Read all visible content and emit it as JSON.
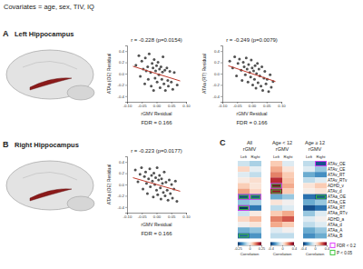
{
  "header": "Covariates = age, sex, TIV, IQ",
  "chart_data": [
    {
      "type": "scatter",
      "panel": "A",
      "region": "Left Hippocampus",
      "title": "r = -0.228 (p=0.0154)",
      "x_label": "rGMV Residual",
      "y_label": "ATAa (OE) Residual",
      "note": "FDR = 0.166",
      "color": "#333333",
      "marker": "circle",
      "x": [
        -0.07,
        -0.06,
        -0.055,
        -0.05,
        -0.045,
        -0.04,
        -0.038,
        -0.035,
        -0.03,
        -0.028,
        -0.025,
        -0.02,
        -0.018,
        -0.015,
        -0.012,
        -0.01,
        -0.008,
        -0.005,
        -0.003,
        0.0,
        0.002,
        0.005,
        0.008,
        0.01,
        0.012,
        0.015,
        0.018,
        0.02,
        0.022,
        0.025,
        0.028,
        0.03,
        0.035,
        0.038,
        0.04,
        0.045,
        0.05,
        0.055,
        0.06,
        0.07
      ],
      "values": [
        0.15,
        0.32,
        -0.05,
        0.22,
        0.08,
        -0.18,
        0.28,
        0.05,
        0.12,
        -0.1,
        0.35,
        0.02,
        -0.22,
        0.18,
        0.1,
        -0.3,
        0.25,
        -0.08,
        0.05,
        0.14,
        -0.15,
        0.2,
        -0.02,
        0.08,
        -0.25,
        0.12,
        -0.1,
        0.03,
        0.3,
        -0.18,
        0.06,
        -0.3,
        0.1,
        -0.12,
        -0.22,
        0.04,
        -0.15,
        -0.28,
        0.02,
        -0.2
      ],
      "fit": {
        "x": [
          -0.08,
          0.08
        ],
        "values": [
          0.13,
          -0.13
        ],
        "color": "#c0392b"
      },
      "xlim": [
        -0.1,
        0.1
      ],
      "ylim": [
        -0.5,
        0.5
      ],
      "xticks": [
        {
          "value": -0.1,
          "label": "-0.10"
        },
        {
          "value": -0.05,
          "label": "-0.05"
        },
        {
          "value": 0,
          "label": "0.00"
        },
        {
          "value": 0.05,
          "label": "0.05"
        },
        {
          "value": 0.1,
          "label": "0.10"
        }
      ],
      "yticks": [
        -0.4,
        -0.2,
        {
          "value": 0,
          "label": "0.0"
        },
        0.2,
        0.4
      ]
    },
    {
      "type": "scatter",
      "title": "r = -0.249 (p=0.0079)",
      "x_label": "rGMV Residual",
      "y_label": "ATAa (RT) Residual",
      "note": "FDR = 0.166",
      "color": "#333333",
      "marker": "circle",
      "x": [
        -0.075,
        -0.065,
        -0.058,
        -0.052,
        -0.047,
        -0.042,
        -0.036,
        -0.033,
        -0.029,
        -0.026,
        -0.022,
        -0.019,
        -0.016,
        -0.013,
        -0.011,
        -0.007,
        -0.004,
        -0.002,
        0.001,
        0.003,
        0.006,
        0.009,
        0.011,
        0.014,
        0.016,
        0.019,
        0.021,
        0.024,
        0.027,
        0.031,
        0.034,
        0.037,
        0.041,
        0.044,
        0.048,
        0.052,
        0.057,
        0.062,
        0.066,
        0.072
      ],
      "values": [
        0.22,
        0.1,
        0.3,
        -0.04,
        0.18,
        0.26,
        0.06,
        -0.12,
        0.2,
        0.12,
        -0.02,
        0.28,
        0.08,
        -0.15,
        0.16,
        0.02,
        -0.06,
        0.24,
        0.1,
        -0.2,
        0.05,
        -0.1,
        0.14,
        -0.26,
        0.0,
        0.18,
        -0.16,
        0.08,
        -0.04,
        -0.22,
        0.12,
        -0.3,
        -0.08,
        0.04,
        -0.18,
        -0.1,
        -0.32,
        -0.02,
        -0.24,
        -0.14
      ],
      "fit": {
        "x": [
          -0.08,
          0.08
        ],
        "values": [
          0.14,
          -0.14
        ],
        "color": "#c0392b"
      },
      "xlim": [
        -0.1,
        0.1
      ],
      "ylim": [
        -0.5,
        0.5
      ],
      "xticks": [
        {
          "value": -0.1,
          "label": "-0.10"
        },
        {
          "value": -0.05,
          "label": "-0.05"
        },
        {
          "value": 0,
          "label": "0.00"
        },
        {
          "value": 0.05,
          "label": "0.05"
        },
        {
          "value": 0.1,
          "label": "0.10"
        }
      ],
      "yticks": [
        -0.4,
        -0.2,
        {
          "value": 0,
          "label": "0.0"
        },
        0.2,
        0.4
      ]
    },
    {
      "type": "scatter",
      "panel": "B",
      "region": "Right Hippocampus",
      "title": "r = -0.223 (p=0.0177)",
      "x_label": "rGMV Residual",
      "y_label": "ATAa (OE) Residual",
      "note": "FDR = 0.166",
      "color": "#333333",
      "marker": "circle",
      "x": [
        -0.072,
        -0.063,
        -0.056,
        -0.051,
        -0.046,
        -0.041,
        -0.037,
        -0.034,
        -0.031,
        -0.027,
        -0.023,
        -0.021,
        -0.017,
        -0.014,
        -0.011,
        -0.009,
        -0.006,
        -0.003,
        0.0,
        0.002,
        0.004,
        0.007,
        0.01,
        0.013,
        0.015,
        0.017,
        0.02,
        0.023,
        0.026,
        0.029,
        0.032,
        0.036,
        0.039,
        0.043,
        0.047,
        0.051,
        0.054,
        0.059,
        0.064,
        0.069
      ],
      "values": [
        0.26,
        0.05,
        0.18,
        0.3,
        -0.08,
        0.14,
        0.22,
        0.02,
        -0.16,
        0.1,
        0.28,
        -0.04,
        0.16,
        0.06,
        -0.22,
        0.2,
        0.0,
        0.12,
        -0.1,
        0.3,
        -0.18,
        0.08,
        0.16,
        -0.06,
        -0.26,
        0.1,
        0.02,
        -0.14,
        0.22,
        -0.2,
        0.04,
        -0.1,
        -0.28,
        0.08,
        -0.16,
        0.0,
        -0.24,
        -0.08,
        0.06,
        -0.3
      ],
      "fit": {
        "x": [
          -0.08,
          0.08
        ],
        "values": [
          0.12,
          -0.12
        ],
        "color": "#c0392b"
      },
      "xlim": [
        -0.1,
        0.1
      ],
      "ylim": [
        -0.5,
        0.5
      ],
      "xticks": [
        {
          "value": -0.1,
          "label": "-0.10"
        },
        {
          "value": -0.05,
          "label": "-0.05"
        },
        {
          "value": 0,
          "label": "0.00"
        },
        {
          "value": 0.05,
          "label": "0.05"
        },
        {
          "value": 0.1,
          "label": "0.10"
        }
      ],
      "yticks": [
        -0.4,
        -0.2,
        {
          "value": 0,
          "label": "0.0"
        },
        0.2,
        0.4
      ]
    },
    {
      "type": "heatmap",
      "panel": "C",
      "groups": [
        {
          "title": "All",
          "subtitle": "rGMV",
          "columns": [
            "Left",
            "Right"
          ],
          "colorbar": {
            "label": "Correlation",
            "range": [
              -0.25,
              0.25
            ],
            "ticks": [
              -0.25,
              0,
              0.25
            ]
          }
        },
        {
          "title": "Age < 12",
          "subtitle": "rGMV",
          "columns": [
            "Left",
            "Right"
          ],
          "colorbar": {
            "label": "Correlation",
            "range": [
              -0.4,
              0.4
            ],
            "ticks": [
              -0.4,
              0,
              0.4
            ]
          }
        },
        {
          "title": "Age ≥ 12",
          "subtitle": "rGMV",
          "columns": [
            "Left",
            "Right"
          ],
          "colorbar": {
            "label": "Correlation",
            "range": [
              -0.4,
              0.4
            ],
            "ticks": [
              -0.4,
              0,
              0.4
            ]
          }
        }
      ],
      "rows": [
        "ATAv_OE",
        "ATAv_CE",
        "ATAv_RT",
        "ATAv_RTv",
        "ADHD_v",
        "ATAv_d",
        "ATAa_OE",
        "ATAa_CE",
        "ATAa_RT",
        "ATAa_RTv",
        "ADHD_a",
        "ATAa_d",
        "ATAa_A",
        "ATAa_B"
      ],
      "values": [
        [
          -0.05,
          -0.08,
          0.1,
          -0.05,
          -0.1,
          -0.35
        ],
        [
          0.05,
          -0.02,
          0.15,
          0.05,
          -0.05,
          -0.15
        ],
        [
          -0.03,
          -0.06,
          0.2,
          0.1,
          -0.2,
          -0.25
        ],
        [
          0.02,
          0.04,
          0.3,
          0.12,
          -0.1,
          -0.05
        ],
        [
          0.06,
          0.03,
          0.38,
          0.15,
          0.05,
          0.1
        ],
        [
          0.1,
          0.05,
          0.35,
          0.1,
          0.02,
          0.05
        ],
        [
          -0.23,
          -0.22,
          -0.2,
          -0.15,
          -0.3,
          -0.35
        ],
        [
          -0.1,
          -0.08,
          0.05,
          0.0,
          -0.2,
          -0.15
        ],
        [
          -0.25,
          -0.18,
          -0.1,
          -0.05,
          -0.35,
          -0.3
        ],
        [
          -0.05,
          0.02,
          0.1,
          0.15,
          -0.15,
          -0.05
        ],
        [
          0.05,
          0.08,
          0.2,
          0.25,
          -0.05,
          0.0
        ],
        [
          0.0,
          0.03,
          0.15,
          0.1,
          -0.1,
          -0.05
        ],
        [
          -0.12,
          -0.1,
          -0.05,
          0.0,
          -0.2,
          -0.15
        ],
        [
          -0.2,
          -0.15,
          -0.1,
          -0.1,
          -0.25,
          -0.2
        ]
      ],
      "legend_items": [
        {
          "label": "FDR < 0.2",
          "color": "#e040fb",
          "cells": [
            [
              6,
              0
            ],
            [
              8,
              0
            ],
            [
              6,
              1
            ],
            [
              4,
              2
            ],
            [
              0,
              5
            ]
          ]
        },
        {
          "label": "P < 0.05",
          "color": "#3cc43c",
          "cells": [
            [
              6,
              0
            ],
            [
              8,
              0
            ],
            [
              6,
              1
            ],
            [
              13,
              0
            ],
            [
              4,
              2
            ],
            [
              5,
              2
            ],
            [
              6,
              5
            ]
          ]
        }
      ]
    }
  ]
}
